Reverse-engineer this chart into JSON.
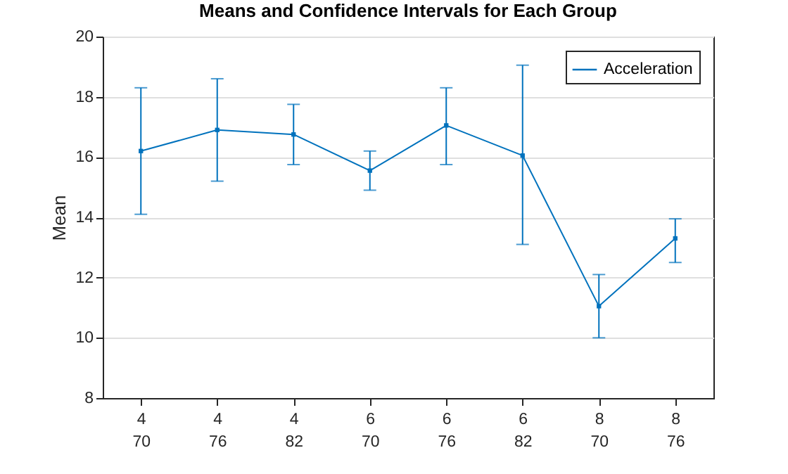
{
  "chart_data": {
    "type": "line",
    "title": "Means and Confidence Intervals for Each Group",
    "ylabel": "Mean",
    "categories": [
      "4\n70",
      "4\n76",
      "4\n82",
      "6\n70",
      "6\n76",
      "6\n82",
      "8\n70",
      "8\n76"
    ],
    "series": [
      {
        "name": "Acceleration",
        "color": "#0072bd",
        "values": [
          16.2,
          16.9,
          16.75,
          15.55,
          17.05,
          16.05,
          11.05,
          13.3
        ],
        "errors": [
          [
            14.1,
            18.3
          ],
          [
            15.2,
            18.6
          ],
          [
            15.75,
            17.75
          ],
          [
            14.9,
            16.2
          ],
          [
            15.75,
            18.3
          ],
          [
            13.1,
            19.05
          ],
          [
            10.0,
            12.1
          ],
          [
            12.5,
            13.95
          ]
        ]
      }
    ],
    "ylim": [
      8,
      20
    ],
    "yticks": [
      8,
      10,
      12,
      14,
      16,
      18,
      20
    ],
    "grid": "y",
    "legend": "top right",
    "marker": "square",
    "line_style": "solid"
  }
}
